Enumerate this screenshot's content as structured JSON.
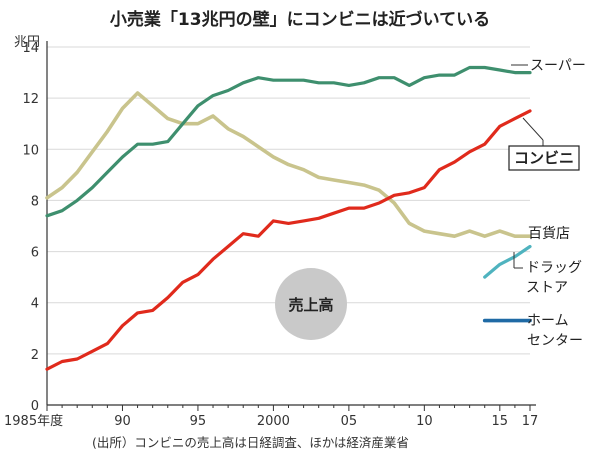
{
  "title": "小売業「13兆円の壁」にコンビニは近づいている",
  "source": "(出所）コンビニの売上高は日経調査、ほかは経済産業省",
  "center_badge": "売上高",
  "chart_data": {
    "type": "line",
    "title": "小売業「13兆円の壁」にコンビニは近づいている",
    "ylabel": "兆円",
    "xlabel": "",
    "ylim": [
      0,
      14
    ],
    "xlim": [
      1985,
      2017
    ],
    "yticks": [
      0,
      2,
      4,
      6,
      8,
      10,
      12,
      14
    ],
    "xticks": [
      {
        "value": 1985,
        "label": "1985年度"
      },
      {
        "value": 1990,
        "label": "90"
      },
      {
        "value": 1995,
        "label": "95"
      },
      {
        "value": 2000,
        "label": "2000"
      },
      {
        "value": 2005,
        "label": "05"
      },
      {
        "value": 2010,
        "label": "10"
      },
      {
        "value": 2015,
        "label": "15"
      },
      {
        "value": 2017,
        "label": "17"
      }
    ],
    "grid": "horizontal",
    "series": [
      {
        "name": "スーパー",
        "color": "#3e8f6e",
        "x": [
          1985,
          1986,
          1987,
          1988,
          1989,
          1990,
          1991,
          1992,
          1993,
          1994,
          1995,
          1996,
          1997,
          1998,
          1999,
          2000,
          2001,
          2002,
          2003,
          2004,
          2005,
          2006,
          2007,
          2008,
          2009,
          2010,
          2011,
          2012,
          2013,
          2014,
          2015,
          2016,
          2017
        ],
        "values": [
          7.4,
          7.6,
          8.0,
          8.5,
          9.1,
          9.7,
          10.2,
          10.2,
          10.3,
          11.0,
          11.7,
          12.1,
          12.3,
          12.6,
          12.8,
          12.7,
          12.7,
          12.7,
          12.6,
          12.6,
          12.5,
          12.6,
          12.8,
          12.8,
          12.5,
          12.8,
          12.9,
          12.9,
          13.2,
          13.2,
          13.1,
          13.0,
          13.0
        ]
      },
      {
        "name": "コンビニ",
        "color": "#e02a1c",
        "x": [
          1985,
          1986,
          1987,
          1988,
          1989,
          1990,
          1991,
          1992,
          1993,
          1994,
          1995,
          1996,
          1997,
          1998,
          1999,
          2000,
          2001,
          2002,
          2003,
          2004,
          2005,
          2006,
          2007,
          2008,
          2009,
          2010,
          2011,
          2012,
          2013,
          2014,
          2015,
          2016,
          2017
        ],
        "values": [
          1.4,
          1.7,
          1.8,
          2.1,
          2.4,
          3.1,
          3.6,
          3.7,
          4.2,
          4.8,
          5.1,
          5.7,
          6.2,
          6.7,
          6.6,
          7.2,
          7.1,
          7.2,
          7.3,
          7.5,
          7.7,
          7.7,
          7.9,
          8.2,
          8.3,
          8.5,
          9.2,
          9.5,
          9.9,
          10.2,
          10.9,
          11.2,
          11.5
        ]
      },
      {
        "name": "百貨店",
        "color": "#c9c48d",
        "x": [
          1985,
          1986,
          1987,
          1988,
          1989,
          1990,
          1991,
          1992,
          1993,
          1994,
          1995,
          1996,
          1997,
          1998,
          1999,
          2000,
          2001,
          2002,
          2003,
          2004,
          2005,
          2006,
          2007,
          2008,
          2009,
          2010,
          2011,
          2012,
          2013,
          2014,
          2015,
          2016,
          2017
        ],
        "values": [
          8.1,
          8.5,
          9.1,
          9.9,
          10.7,
          11.6,
          12.2,
          11.7,
          11.2,
          11.0,
          11.0,
          11.3,
          10.8,
          10.5,
          10.1,
          9.7,
          9.4,
          9.2,
          8.9,
          8.8,
          8.7,
          8.6,
          8.4,
          7.9,
          7.1,
          6.8,
          6.7,
          6.6,
          6.8,
          6.6,
          6.8,
          6.6,
          6.6
        ]
      },
      {
        "name": "ドラッグストア",
        "color": "#4fb3bf",
        "x": [
          2014,
          2015,
          2016,
          2017
        ],
        "values": [
          5.0,
          5.5,
          5.8,
          6.2
        ]
      },
      {
        "name": "ホームセンター",
        "color": "#1f6aa5",
        "x": [
          2014,
          2015,
          2016,
          2017
        ],
        "values": [
          3.3,
          3.3,
          3.3,
          3.3
        ]
      }
    ],
    "labels": {
      "super": "スーパー",
      "conveni": "コンビニ",
      "dept": "百貨店",
      "drug_line1": "ドラッグ",
      "drug_line2": "ストア",
      "home_line1": "ホーム",
      "home_line2": "センター"
    }
  }
}
